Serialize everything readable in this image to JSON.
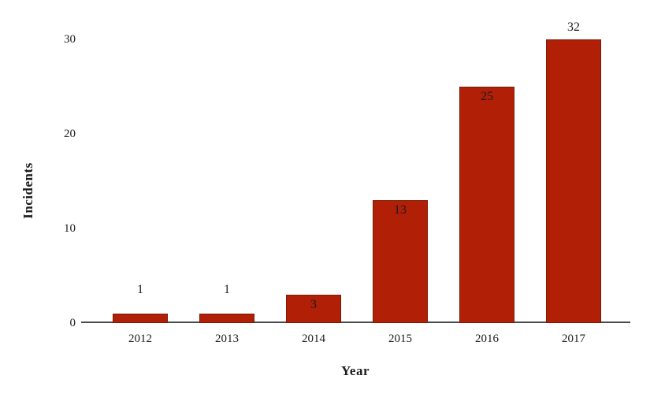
{
  "chart_data": {
    "type": "bar",
    "title": "",
    "categories": [
      "2012",
      "2013",
      "2014",
      "2015",
      "2016",
      "2017"
    ],
    "values": [
      1,
      1,
      3,
      13,
      25,
      32
    ],
    "value_labels": [
      "1",
      "1",
      "3",
      "13",
      "25",
      "32"
    ],
    "xlabel": "Year",
    "ylabel": "Incidents",
    "ylim": [
      0,
      30
    ],
    "yticks": [
      0,
      10,
      20,
      30
    ],
    "ytick_labels": [
      "0",
      "10",
      "20",
      "30"
    ],
    "grid": false,
    "legend_position": "none",
    "colors": {
      "bar_fill": "#B01F06",
      "bar_border": "#7C1A05",
      "axis_line": "#4A4A4A",
      "text": "#1C1C1C",
      "background": "#FFFFFF"
    }
  }
}
